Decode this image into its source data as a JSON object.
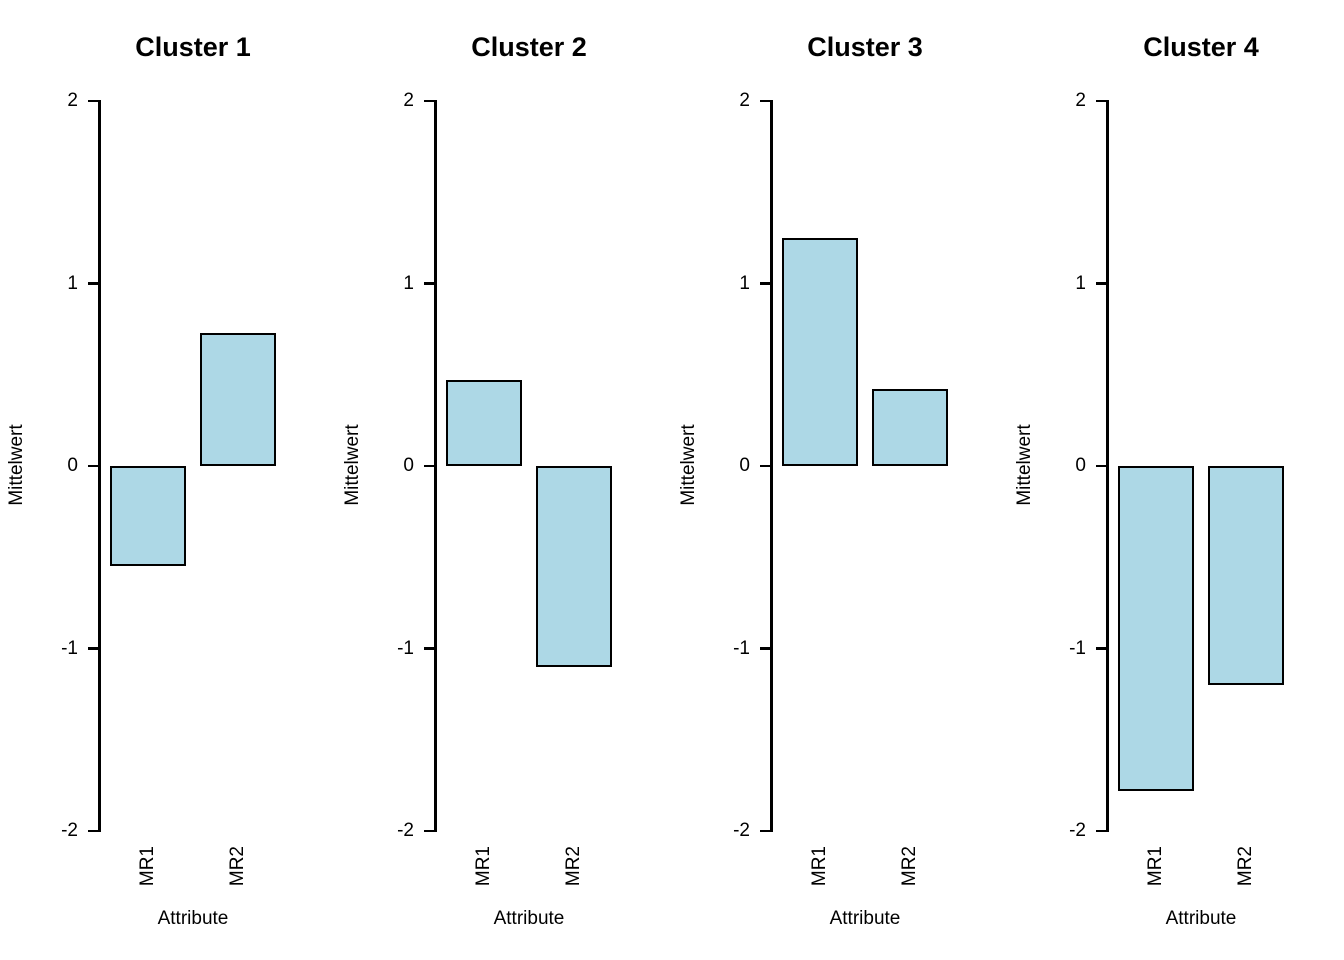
{
  "figure": {
    "background": "#FFFFFF",
    "bar_fill": "#ADD8E6",
    "bar_border": "#000000",
    "text_color": "#000000"
  },
  "chart_data": [
    {
      "type": "bar",
      "title": "Cluster 1",
      "categories": [
        "MR1",
        "MR2"
      ],
      "values": [
        -0.55,
        0.73
      ],
      "xlabel": "Attribute",
      "ylabel": "Mittelwert",
      "ylim": [
        -2,
        2
      ],
      "yticks": [
        2,
        1,
        0,
        -1,
        -2
      ],
      "grid": false,
      "legend_position": "none"
    },
    {
      "type": "bar",
      "title": "Cluster 2",
      "categories": [
        "MR1",
        "MR2"
      ],
      "values": [
        0.47,
        -1.1
      ],
      "xlabel": "Attribute",
      "ylabel": "Mittelwert",
      "ylim": [
        -2,
        2
      ],
      "yticks": [
        2,
        1,
        0,
        -1,
        -2
      ],
      "grid": false,
      "legend_position": "none"
    },
    {
      "type": "bar",
      "title": "Cluster 3",
      "categories": [
        "MR1",
        "MR2"
      ],
      "values": [
        1.25,
        0.42
      ],
      "xlabel": "Attribute",
      "ylabel": "Mittelwert",
      "ylim": [
        -2,
        2
      ],
      "yticks": [
        2,
        1,
        0,
        -1,
        -2
      ],
      "grid": false,
      "legend_position": "none"
    },
    {
      "type": "bar",
      "title": "Cluster 4",
      "categories": [
        "MR1",
        "MR2"
      ],
      "values": [
        -1.78,
        -1.2
      ],
      "xlabel": "Attribute",
      "ylabel": "Mittelwert",
      "ylim": [
        -2,
        2
      ],
      "yticks": [
        2,
        1,
        0,
        -1,
        -2
      ],
      "grid": false,
      "legend_position": "none"
    }
  ]
}
